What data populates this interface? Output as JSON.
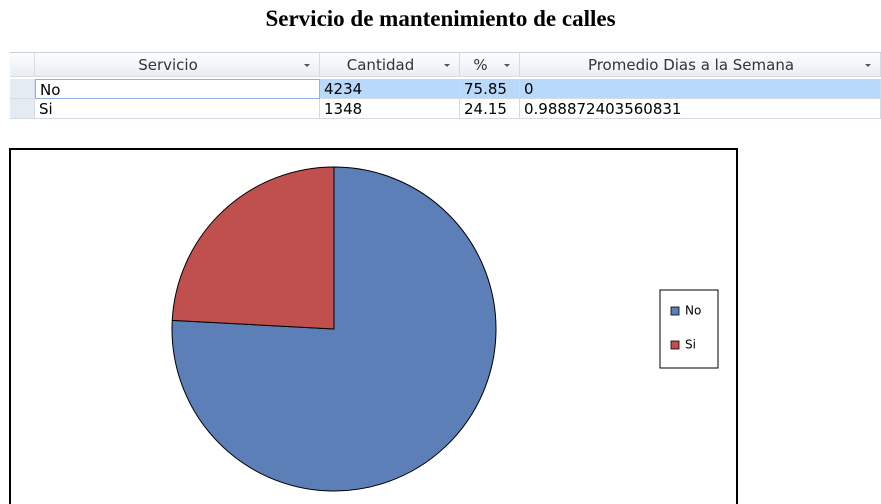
{
  "title": "Servicio de mantenimiento de calles",
  "table": {
    "columns": [
      "Servicio",
      "Cantidad",
      "%",
      "Promedio Dias a la Semana"
    ],
    "rows": [
      [
        "No",
        "4234",
        "75.85",
        "0"
      ],
      [
        "Si",
        "1348",
        "24.15",
        "0.988872403560831"
      ]
    ]
  },
  "chart_data": {
    "type": "pie",
    "categories": [
      "No",
      "Si"
    ],
    "values": [
      75.85,
      24.15
    ],
    "colors": [
      "#5b7fb6",
      "#c0504d"
    ],
    "legend": "right"
  }
}
